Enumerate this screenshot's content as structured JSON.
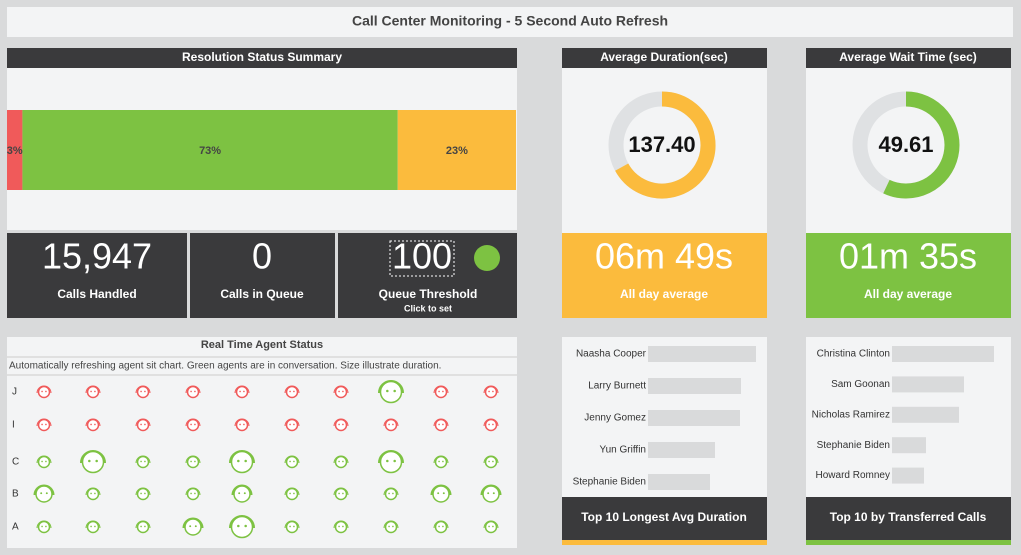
{
  "header": {
    "title": "Call Center Monitoring - 5 Second Auto Refresh"
  },
  "resolution": {
    "title": "Resolution Status Summary",
    "values": [
      3,
      73,
      23
    ],
    "value_labels": [
      "3%",
      "73%",
      "23%"
    ],
    "colors": [
      "#f05a5a",
      "#7dc242",
      "#fbbb3d"
    ]
  },
  "kpis": [
    {
      "value": "15,947",
      "label": "Calls Handled"
    },
    {
      "value": "0",
      "label": "Calls in Queue"
    },
    {
      "value": "100",
      "label": "Queue Threshold",
      "note": "Click to set",
      "indicator_color": "#7dc242"
    }
  ],
  "duration": {
    "title": "Average Duration(sec)",
    "center": "137.40",
    "ring_value": 67,
    "ring_lim": [
      0,
      100
    ],
    "color": "#fbbb3d",
    "track": "#dfe1e3",
    "summary": "06m 49s",
    "caption": "All day average"
  },
  "wait": {
    "title": "Average Wait Time (sec)",
    "center": "49.61",
    "ring_value": 57,
    "ring_lim": [
      0,
      100
    ],
    "color": "#7dc242",
    "track": "#dfe1e3",
    "summary": "01m 35s",
    "caption": "All day average"
  },
  "agents": {
    "title": "Real Time Agent Status",
    "subtitle": "Automatically refreshing agent sit chart. Green agents are in conversation. Size illustrate duration.",
    "rows": [
      "J",
      "I",
      "C",
      "B",
      "A"
    ],
    "sizes": [
      [
        1,
        1,
        1,
        1,
        1,
        1,
        1,
        3,
        1,
        1
      ],
      [
        1,
        1,
        1,
        1,
        1,
        1,
        1,
        1,
        1,
        1
      ],
      [
        1,
        3,
        1,
        1,
        3,
        1,
        1,
        3,
        1,
        1
      ],
      [
        2,
        1,
        1,
        1,
        2,
        1,
        1,
        1,
        2,
        2
      ],
      [
        1,
        1,
        1,
        2,
        3,
        1,
        1,
        1,
        1,
        1
      ]
    ],
    "colors": [
      [
        "#f05a5a",
        "#f05a5a",
        "#f05a5a",
        "#f05a5a",
        "#f05a5a",
        "#f05a5a",
        "#f05a5a",
        "#7dc242",
        "#f05a5a",
        "#f05a5a"
      ],
      [
        "#f05a5a",
        "#f05a5a",
        "#f05a5a",
        "#f05a5a",
        "#f05a5a",
        "#f05a5a",
        "#f05a5a",
        "#f05a5a",
        "#f05a5a",
        "#f05a5a"
      ],
      [
        "#7dc242",
        "#7dc242",
        "#7dc242",
        "#7dc242",
        "#7dc242",
        "#7dc242",
        "#7dc242",
        "#7dc242",
        "#7dc242",
        "#7dc242"
      ],
      [
        "#7dc242",
        "#7dc242",
        "#7dc242",
        "#7dc242",
        "#7dc242",
        "#7dc242",
        "#7dc242",
        "#7dc242",
        "#7dc242",
        "#7dc242"
      ],
      [
        "#7dc242",
        "#7dc242",
        "#7dc242",
        "#7dc242",
        "#7dc242",
        "#7dc242",
        "#7dc242",
        "#7dc242",
        "#7dc242",
        "#7dc242"
      ]
    ]
  },
  "longest": {
    "footer": "Top 10 Longest Avg Duration",
    "names": [
      "Naasha Cooper",
      "Larry Burnett",
      "Jenny Gomez",
      "Yun Griffin",
      "Stephanie Biden"
    ],
    "values": [
      108,
      93,
      92,
      67,
      62
    ],
    "xlim": [
      0,
      120
    ],
    "color": "#d9dadb",
    "accent": "#fbbb3d"
  },
  "transferred": {
    "footer": "Top 10 by Transferred Calls",
    "names": [
      "Christina Clinton",
      "Sam Goonan",
      "Nicholas Ramirez",
      "Stephanie Biden",
      "Howard Romney"
    ],
    "values": [
      102,
      72,
      67,
      34,
      32
    ],
    "xlim": [
      0,
      120
    ],
    "color": "#d9dadb",
    "accent": "#7dc242"
  }
}
